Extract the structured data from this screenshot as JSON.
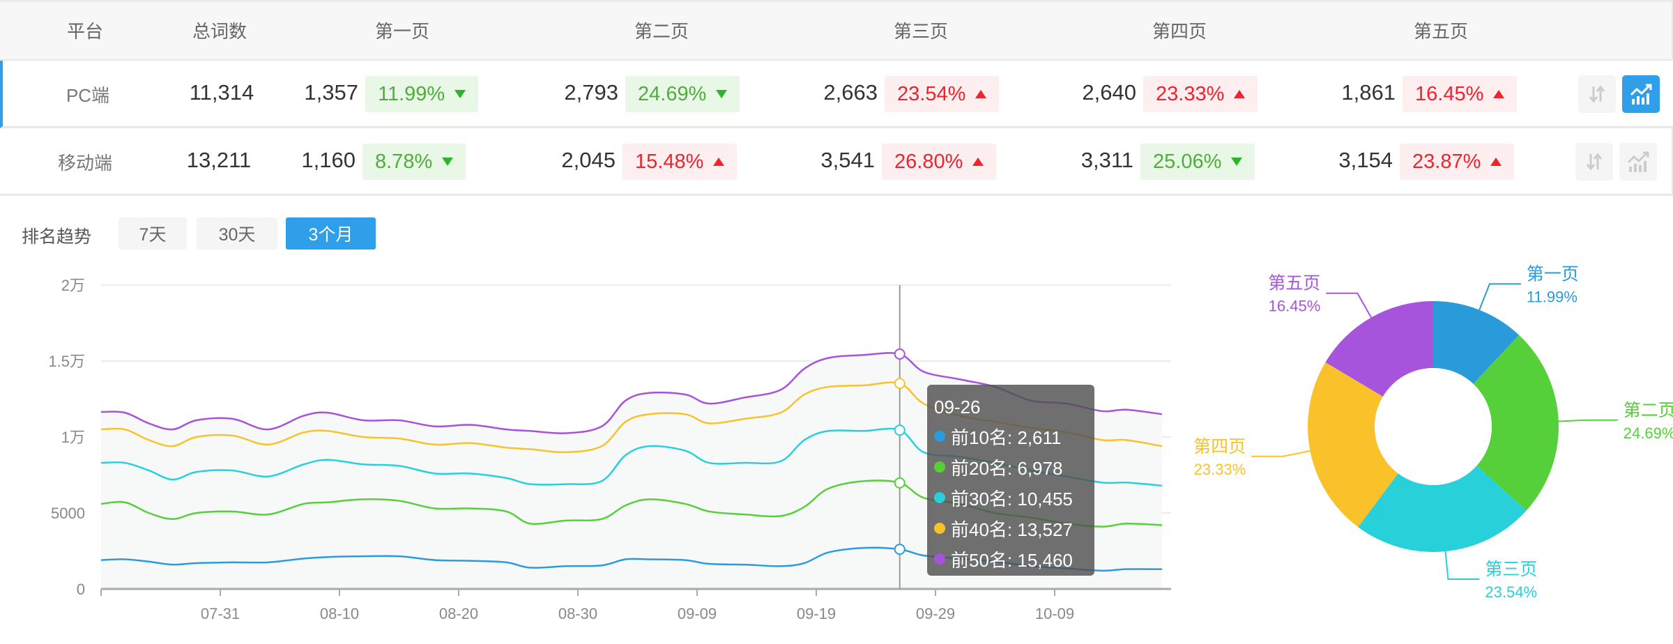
{
  "table": {
    "headers": [
      "平台",
      "总词数",
      "第一页",
      "第二页",
      "第三页",
      "第四页",
      "第五页"
    ],
    "rows": [
      {
        "platform": "PC端",
        "total": "11,314",
        "active": true,
        "pages": [
          {
            "count": "1,357",
            "pct": "11.99%",
            "dir": "down"
          },
          {
            "count": "2,793",
            "pct": "24.69%",
            "dir": "down"
          },
          {
            "count": "2,663",
            "pct": "23.54%",
            "dir": "up"
          },
          {
            "count": "2,640",
            "pct": "23.33%",
            "dir": "up"
          },
          {
            "count": "1,861",
            "pct": "16.45%",
            "dir": "up"
          }
        ],
        "sort_icon": "sort-arrows-icon",
        "chart_icon": "trend-chart-icon",
        "chart_selected": true
      },
      {
        "platform": "移动端",
        "total": "13,211",
        "active": false,
        "pages": [
          {
            "count": "1,160",
            "pct": "8.78%",
            "dir": "down"
          },
          {
            "count": "2,045",
            "pct": "15.48%",
            "dir": "up"
          },
          {
            "count": "3,541",
            "pct": "26.80%",
            "dir": "up"
          },
          {
            "count": "3,311",
            "pct": "25.06%",
            "dir": "down"
          },
          {
            "count": "3,154",
            "pct": "23.87%",
            "dir": "up"
          }
        ],
        "sort_icon": "sort-arrows-icon",
        "chart_icon": "trend-chart-icon",
        "chart_selected": false
      }
    ],
    "colors": {
      "up": "#f0232d",
      "down": "#2bb52b",
      "accent": "#2e9fe8"
    }
  },
  "trend": {
    "label": "排名趋势",
    "ranges": [
      {
        "label": "7天",
        "selected": false
      },
      {
        "label": "30天",
        "selected": false
      },
      {
        "label": "3个月",
        "selected": true
      }
    ]
  },
  "tooltip": {
    "date": "09-26",
    "items": [
      {
        "label": "前10名: 2,611",
        "color": "#2b9be0"
      },
      {
        "label": "前20名: 6,978",
        "color": "#55d03a"
      },
      {
        "label": "前30名: 10,455",
        "color": "#27d0dc"
      },
      {
        "label": "前40名: 13,527",
        "color": "#f9c22a"
      },
      {
        "label": "前50名: 15,460",
        "color": "#a653dc"
      }
    ]
  },
  "chart_data": [
    {
      "type": "line",
      "x": [
        "07-21",
        "07-23",
        "07-25",
        "07-27",
        "07-29",
        "08-01",
        "08-04",
        "08-07",
        "08-09",
        "08-12",
        "08-15",
        "08-18",
        "08-21",
        "08-24",
        "08-26",
        "08-29",
        "09-01",
        "09-03",
        "09-05",
        "09-08",
        "09-10",
        "09-13",
        "09-16",
        "09-18",
        "09-20",
        "09-23",
        "09-26",
        "09-28",
        "10-01",
        "10-04",
        "10-07",
        "10-10",
        "10-13",
        "10-15",
        "10-18"
      ],
      "x_ticks": [
        "07-31",
        "08-10",
        "08-20",
        "08-30",
        "09-09",
        "09-19",
        "09-29",
        "10-09"
      ],
      "y_ticks": [
        "0",
        "5000",
        "1万",
        "1.5万",
        "2万"
      ],
      "ylim": [
        0,
        20000
      ],
      "grid": true,
      "highlight_x": "09-26",
      "series": [
        {
          "name": "前10名",
          "color": "#2b9be0",
          "values": [
            1900,
            1950,
            1800,
            1600,
            1700,
            1750,
            1750,
            2000,
            2100,
            2150,
            2150,
            1900,
            1850,
            1750,
            1400,
            1500,
            1550,
            1950,
            1950,
            1900,
            1650,
            1600,
            1500,
            1700,
            2400,
            2700,
            2611,
            2200,
            2000,
            1800,
            1500,
            1350,
            1200,
            1300,
            1300
          ]
        },
        {
          "name": "前20名",
          "color": "#55d03a",
          "values": [
            5600,
            5700,
            5000,
            4600,
            5000,
            5100,
            4900,
            5600,
            5700,
            5900,
            5800,
            5300,
            5300,
            5100,
            4300,
            4500,
            4600,
            5500,
            5900,
            5600,
            5100,
            4900,
            4800,
            5400,
            6600,
            7100,
            6978,
            6000,
            5600,
            5000,
            4700,
            4300,
            4100,
            4300,
            4200
          ]
        },
        {
          "name": "前30名",
          "color": "#27d0dc",
          "values": [
            8300,
            8300,
            7800,
            7200,
            7700,
            7800,
            7400,
            8200,
            8500,
            8200,
            8100,
            7600,
            7600,
            7300,
            6900,
            6900,
            7100,
            8800,
            9400,
            9100,
            8300,
            8300,
            8400,
            9800,
            10400,
            10400,
            10455,
            9000,
            8700,
            8300,
            7800,
            7400,
            7000,
            7000,
            6800
          ]
        },
        {
          "name": "前40名",
          "color": "#f9c22a",
          "values": [
            10500,
            10500,
            9800,
            9400,
            10000,
            10100,
            9500,
            10300,
            10400,
            10000,
            9900,
            9500,
            9600,
            9300,
            9200,
            9000,
            9400,
            11000,
            11500,
            11500,
            10900,
            11200,
            11600,
            12800,
            13300,
            13400,
            13527,
            12200,
            11400,
            11000,
            10600,
            10300,
            9800,
            9800,
            9400
          ]
        },
        {
          "name": "前50名",
          "color": "#a653dc",
          "values": [
            11650,
            11600,
            10900,
            10500,
            11100,
            11200,
            10500,
            11400,
            11600,
            11100,
            11100,
            10700,
            10800,
            10500,
            10400,
            10250,
            10700,
            12400,
            12900,
            12800,
            12200,
            12600,
            13100,
            14500,
            15200,
            15400,
            15460,
            14300,
            13800,
            13300,
            12400,
            12200,
            11700,
            11800,
            11500
          ]
        }
      ]
    },
    {
      "type": "pie",
      "donut": true,
      "categories": [
        "第一页",
        "第二页",
        "第三页",
        "第四页",
        "第五页"
      ],
      "values": [
        11.99,
        24.69,
        23.54,
        23.33,
        16.45
      ],
      "labels": [
        "11.99%",
        "24.69%",
        "23.54%",
        "23.33%",
        "16.45%"
      ],
      "colors": [
        "#2a9bda",
        "#56d03a",
        "#28d0d9",
        "#f9c22a",
        "#a654dc"
      ]
    }
  ]
}
